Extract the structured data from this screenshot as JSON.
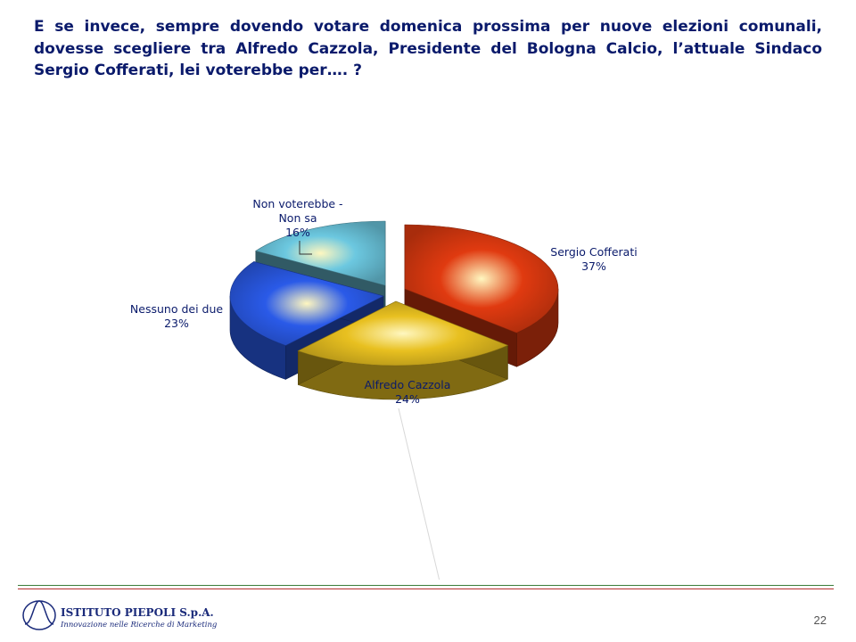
{
  "question": "E se invece, sempre dovendo votare domenica prossima per nuove elezioni comunali, dovesse scegliere tra Alfredo Cazzola, Presidente del Bologna Calcio, l’attuale Sindaco Sergio Cofferati, lei voterebbe per…. ?",
  "chart_data": {
    "type": "pie",
    "title": "",
    "slices": [
      {
        "label_lines": [
          "Sergio Cofferati",
          "37%"
        ],
        "label": "Sergio Cofferati",
        "value": 37,
        "pct": "37%",
        "color": "#e03a10"
      },
      {
        "label_lines": [
          "Alfredo Cazzola",
          "24%"
        ],
        "label": "Alfredo Cazzola",
        "value": 24,
        "pct": "24%",
        "color": "#e8c020"
      },
      {
        "label_lines": [
          "Nessuno dei due",
          "23%"
        ],
        "label": "Nessuno dei due",
        "value": 23,
        "pct": "23%",
        "color": "#2a5ae8"
      },
      {
        "label_lines": [
          "Non voterebbe -",
          "Non sa",
          "16%"
        ],
        "label": "Non voterebbe - Non sa",
        "value": 16,
        "pct": "16%",
        "color": "#6cc8e0"
      }
    ]
  },
  "footer": {
    "logo_name": "ISTITUTO PIEPOLI  S.p.A.",
    "logo_tagline": "Innovazione nelle Ricerche di Marketing",
    "page_number": "22"
  }
}
